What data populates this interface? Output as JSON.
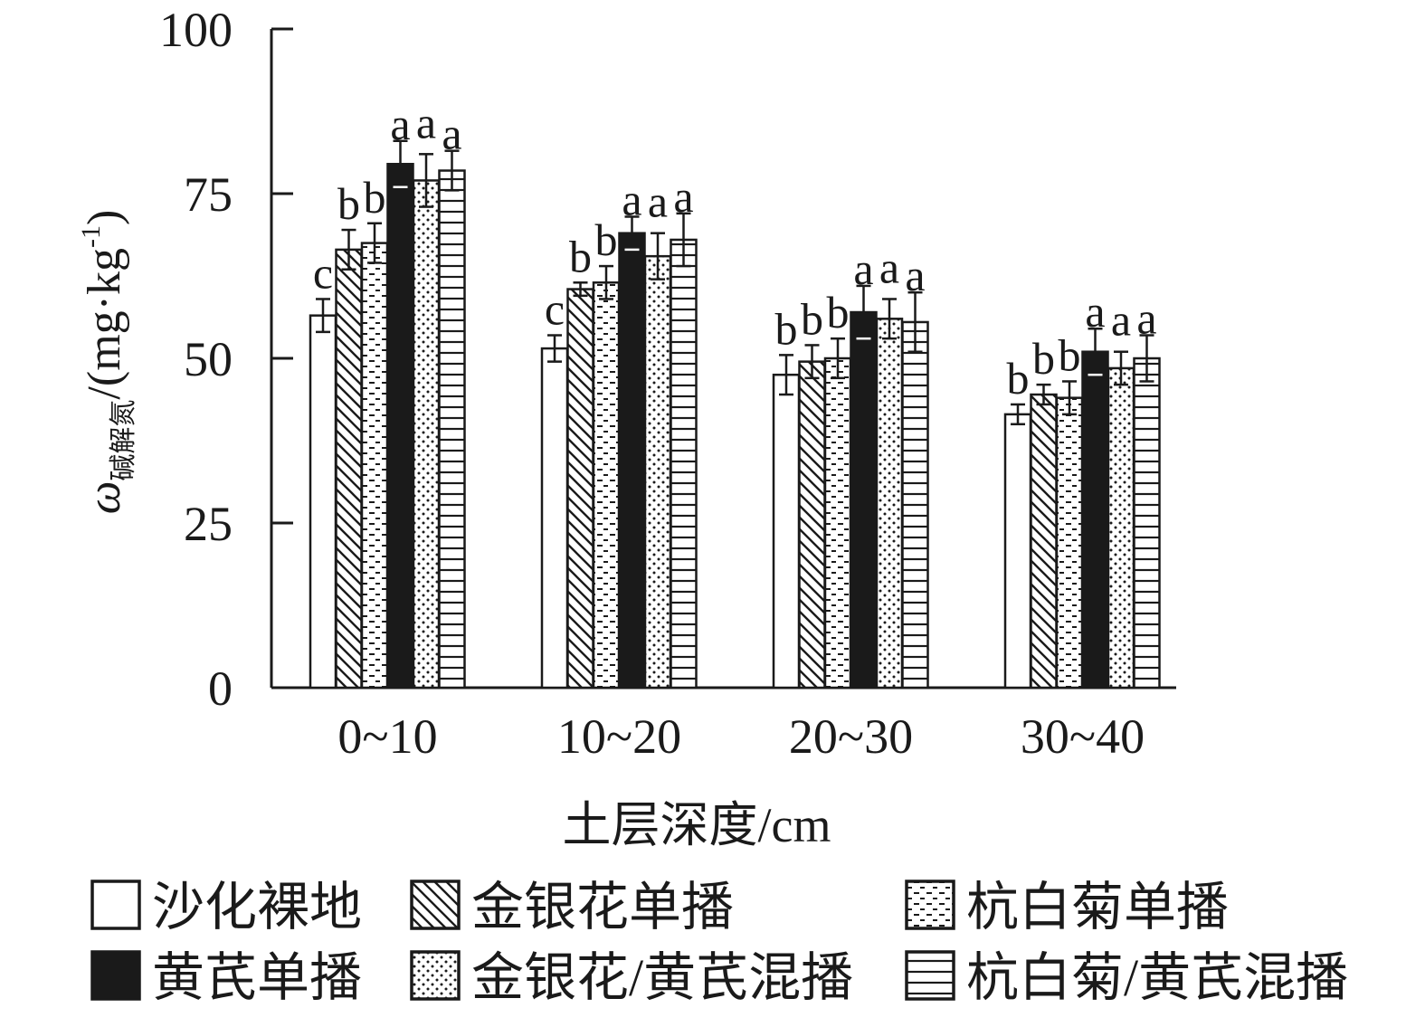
{
  "chart_data": {
    "type": "bar",
    "title": "",
    "xlabel": "土层深度/cm",
    "ylabel": {
      "symbol": "ω",
      "subscript": "碱解氮",
      "unit": "/(mg·kg",
      "unit_exp": "-1",
      "unit_close": ")"
    },
    "ylim": [
      0,
      100
    ],
    "yticks": [
      "0",
      "25",
      "50",
      "75",
      "100"
    ],
    "categories": [
      "0~10",
      "10~20",
      "20~30",
      "30~40"
    ],
    "grid": false,
    "legend_position": "bottom",
    "series": [
      {
        "name": "沙化裸地",
        "pattern": "blank",
        "values": [
          56.5,
          51.5,
          47.5,
          41.5
        ],
        "errors": [
          2.5,
          2.0,
          3.0,
          1.5
        ],
        "letters": [
          "c",
          "c",
          "b",
          "b"
        ]
      },
      {
        "name": "金银花单播",
        "pattern": "diagonal",
        "values": [
          66.5,
          60.5,
          49.5,
          44.5
        ],
        "errors": [
          3.0,
          1.0,
          2.5,
          1.5
        ],
        "letters": [
          "b",
          "b",
          "b",
          "b"
        ]
      },
      {
        "name": "杭白菊单播",
        "pattern": "dashes",
        "values": [
          67.5,
          61.5,
          50.0,
          44.0
        ],
        "errors": [
          3.0,
          2.5,
          3.0,
          2.5
        ],
        "letters": [
          "b",
          "b",
          "b",
          "b"
        ]
      },
      {
        "name": "黄芪单播",
        "pattern": "solid",
        "values": [
          79.5,
          69.0,
          57.0,
          51.0
        ],
        "errors": [
          3.5,
          2.5,
          4.0,
          3.5
        ],
        "letters": [
          "a",
          "a",
          "a",
          "a"
        ]
      },
      {
        "name": "金银花/黄芪混播",
        "pattern": "dots",
        "values": [
          77.0,
          65.5,
          56.0,
          48.5
        ],
        "errors": [
          4.0,
          3.5,
          3.0,
          2.5
        ],
        "letters": [
          "a",
          "a",
          "a",
          "a"
        ]
      },
      {
        "name": "杭白菊/黄芪混播",
        "pattern": "horizontal",
        "values": [
          78.5,
          68.0,
          55.5,
          50.0
        ],
        "errors": [
          3.0,
          4.0,
          4.5,
          3.5
        ],
        "letters": [
          "a",
          "a",
          "a",
          "a"
        ]
      }
    ]
  },
  "colors": {
    "stroke": "#1a1a1a",
    "fill_solid": "#1a1a1a",
    "background": "#ffffff"
  }
}
